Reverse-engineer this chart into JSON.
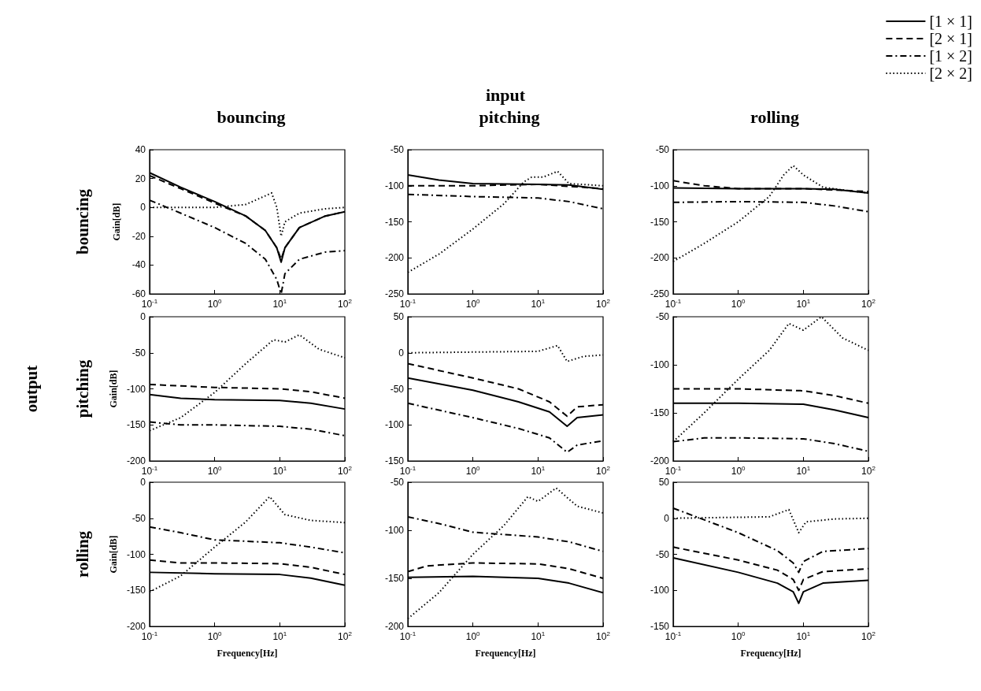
{
  "chart_data": [
    {
      "type": "line",
      "title": "bouncing",
      "ylabel": "Gain[dB]",
      "annotations": [
        "bouncing"
      ],
      "log": "x",
      "xlim": [
        0.1,
        100
      ],
      "xticks": [
        {
          "value": 0.1,
          "label": "10$^{-1}$"
        },
        {
          "value": 1,
          "label": "10$^{0}$"
        },
        {
          "value": 10,
          "label": "10$^{1}$"
        },
        {
          "value": 100,
          "label": "10$^{2}$"
        }
      ],
      "ylim": [
        -60,
        40
      ],
      "yticks": [
        -60,
        -40,
        -20,
        0,
        20,
        40
      ],
      "series": [
        {
          "color": "#000000",
          "line_style": "solid",
          "x": [
            0.1,
            0.3,
            1,
            3,
            6,
            9,
            10.5,
            12,
            20,
            50,
            100
          ],
          "values": [
            24,
            14,
            4,
            -6,
            -16,
            -28,
            -38,
            -28,
            -14,
            -6,
            -3
          ]
        },
        {
          "color": "#000000",
          "line_style": "dashed",
          "x": [
            0.1,
            0.3,
            1,
            3,
            6,
            9,
            10.5,
            12,
            20,
            50,
            100
          ],
          "values": [
            22,
            13,
            3,
            -6,
            -16,
            -28,
            -36,
            -28,
            -14,
            -6,
            -3
          ]
        },
        {
          "color": "#000000",
          "line_style": "dashdot",
          "x": [
            0.1,
            0.3,
            1,
            3,
            6,
            9,
            10.5,
            12,
            20,
            50,
            100
          ],
          "values": [
            5,
            -4,
            -14,
            -25,
            -36,
            -50,
            -60,
            -46,
            -36,
            -31,
            -30
          ]
        },
        {
          "color": "#000000",
          "line_style": "dotted",
          "x": [
            0.1,
            1,
            3,
            6,
            7.5,
            9,
            10.5,
            12,
            20,
            50,
            100
          ],
          "values": [
            0,
            0,
            2,
            8,
            10,
            0,
            -20,
            -10,
            -4,
            -1,
            0
          ]
        }
      ]
    },
    {
      "type": "line",
      "title": "pitching",
      "annotations": [
        "input"
      ],
      "log": "x",
      "xlim": [
        0.1,
        100
      ],
      "xticks": [
        {
          "value": 0.1,
          "label": "10$^{-1}$"
        },
        {
          "value": 1,
          "label": "10$^{0}$"
        },
        {
          "value": 10,
          "label": "10$^{1}$"
        },
        {
          "value": 100,
          "label": "10$^{2}$"
        }
      ],
      "ylim": [
        -250,
        -50
      ],
      "yticks": [
        -250,
        -200,
        -150,
        -100,
        -50
      ],
      "series": [
        {
          "color": "#000000",
          "line_style": "solid",
          "x": [
            0.1,
            0.3,
            1,
            10,
            30,
            100
          ],
          "values": [
            -85,
            -92,
            -97,
            -98,
            -99,
            -105
          ]
        },
        {
          "color": "#000000",
          "line_style": "dashed",
          "x": [
            0.1,
            1,
            10,
            100
          ],
          "values": [
            -100,
            -100,
            -98,
            -104
          ]
        },
        {
          "color": "#000000",
          "line_style": "dashdot",
          "x": [
            0.1,
            1,
            10,
            30,
            100
          ],
          "values": [
            -112,
            -115,
            -117,
            -122,
            -132
          ]
        },
        {
          "color": "#000000",
          "line_style": "dotted",
          "x": [
            0.1,
            0.3,
            1,
            3,
            6,
            8,
            12,
            20,
            30,
            100
          ],
          "values": [
            -220,
            -195,
            -160,
            -125,
            -95,
            -88,
            -88,
            -80,
            -97,
            -100
          ]
        }
      ]
    },
    {
      "type": "line",
      "title": "rolling",
      "legend": "top right",
      "log": "x",
      "xlim": [
        0.1,
        100
      ],
      "xticks": [
        {
          "value": 0.1,
          "label": "10$^{-1}$"
        },
        {
          "value": 1,
          "label": "10$^{0}$"
        },
        {
          "value": 10,
          "label": "10$^{1}$"
        },
        {
          "value": 100,
          "label": "10$^{2}$"
        }
      ],
      "ylim": [
        -250,
        -50
      ],
      "yticks": [
        -250,
        -200,
        -150,
        -100,
        -50
      ],
      "series": [
        {
          "name": "[1 × 1]",
          "color": "#000000",
          "line_style": "solid",
          "x": [
            0.1,
            1,
            10,
            30,
            100
          ],
          "values": [
            -103,
            -104,
            -104,
            -105,
            -110
          ]
        },
        {
          "name": "[2 × 1]",
          "color": "#000000",
          "line_style": "dashed",
          "x": [
            0.1,
            0.3,
            1,
            10,
            100
          ],
          "values": [
            -93,
            -100,
            -104,
            -104,
            -108
          ]
        },
        {
          "name": "[1 × 2]",
          "color": "#000000",
          "line_style": "dashdot",
          "x": [
            0.1,
            1,
            10,
            30,
            100
          ],
          "values": [
            -123,
            -122,
            -123,
            -128,
            -136
          ]
        },
        {
          "name": "[2 × 2]",
          "color": "#000000",
          "line_style": "dotted",
          "x": [
            0.1,
            0.3,
            1,
            3,
            5,
            7,
            10,
            20,
            50,
            100
          ],
          "values": [
            -205,
            -180,
            -150,
            -115,
            -85,
            -72,
            -85,
            -102,
            -107,
            -110
          ]
        }
      ]
    },
    {
      "type": "line",
      "ylabel": "Gain[dB]",
      "annotations": [
        "output",
        "pitching"
      ],
      "log": "x",
      "xlim": [
        0.1,
        100
      ],
      "xticks": [
        {
          "value": 0.1,
          "label": "10$^{-1}$"
        },
        {
          "value": 1,
          "label": "10$^{0}$"
        },
        {
          "value": 10,
          "label": "10$^{1}$"
        },
        {
          "value": 100,
          "label": "10$^{2}$"
        }
      ],
      "ylim": [
        -200,
        0
      ],
      "yticks": [
        -200,
        -150,
        -100,
        -50,
        0
      ],
      "series": [
        {
          "color": "#000000",
          "line_style": "solid",
          "x": [
            0.1,
            0.3,
            1,
            10,
            30,
            100
          ],
          "values": [
            -108,
            -113,
            -115,
            -116,
            -120,
            -128
          ]
        },
        {
          "color": "#000000",
          "line_style": "dashed",
          "x": [
            0.1,
            1,
            10,
            30,
            100
          ],
          "values": [
            -94,
            -98,
            -100,
            -104,
            -113
          ]
        },
        {
          "color": "#000000",
          "line_style": "dashdot",
          "x": [
            0.1,
            0.3,
            1,
            10,
            30,
            100
          ],
          "values": [
            -146,
            -150,
            -150,
            -152,
            -156,
            -165
          ]
        },
        {
          "color": "#000000",
          "line_style": "dotted",
          "x": [
            0.1,
            0.3,
            1,
            3,
            8,
            12,
            20,
            40,
            100
          ],
          "values": [
            -158,
            -140,
            -105,
            -65,
            -32,
            -35,
            -25,
            -45,
            -57
          ]
        }
      ]
    },
    {
      "type": "line",
      "log": "x",
      "xlim": [
        0.1,
        100
      ],
      "xticks": [
        {
          "value": 0.1,
          "label": "10$^{-1}$"
        },
        {
          "value": 1,
          "label": "10$^{0}$"
        },
        {
          "value": 10,
          "label": "10$^{1}$"
        },
        {
          "value": 100,
          "label": "10$^{2}$"
        }
      ],
      "ylim": [
        -150,
        50
      ],
      "yticks": [
        -150,
        -100,
        -50,
        0,
        50
      ],
      "series": [
        {
          "color": "#000000",
          "line_style": "solid",
          "x": [
            0.1,
            1,
            5,
            15,
            28,
            40,
            100
          ],
          "values": [
            -35,
            -52,
            -68,
            -82,
            -102,
            -90,
            -86
          ]
        },
        {
          "color": "#000000",
          "line_style": "dashed",
          "x": [
            0.1,
            1,
            5,
            15,
            28,
            40,
            100
          ],
          "values": [
            -15,
            -35,
            -50,
            -68,
            -88,
            -75,
            -72
          ]
        },
        {
          "color": "#000000",
          "line_style": "dashdot",
          "x": [
            0.1,
            1,
            5,
            15,
            28,
            40,
            100
          ],
          "values": [
            -70,
            -90,
            -105,
            -118,
            -138,
            -128,
            -122
          ]
        },
        {
          "color": "#000000",
          "line_style": "dotted",
          "x": [
            0.1,
            10,
            20,
            28,
            50,
            100
          ],
          "values": [
            0,
            2,
            10,
            -12,
            -5,
            -3
          ]
        }
      ]
    },
    {
      "type": "line",
      "log": "x",
      "xlim": [
        0.1,
        100
      ],
      "xticks": [
        {
          "value": 0.1,
          "label": "10$^{-1}$"
        },
        {
          "value": 1,
          "label": "10$^{0}$"
        },
        {
          "value": 10,
          "label": "10$^{1}$"
        },
        {
          "value": 100,
          "label": "10$^{2}$"
        }
      ],
      "ylim": [
        -200,
        -50
      ],
      "yticks": [
        -200,
        -150,
        -100,
        -50
      ],
      "series": [
        {
          "color": "#000000",
          "line_style": "solid",
          "x": [
            0.1,
            1,
            10,
            30,
            100
          ],
          "values": [
            -140,
            -140,
            -141,
            -147,
            -155
          ]
        },
        {
          "color": "#000000",
          "line_style": "dashed",
          "x": [
            0.1,
            1,
            10,
            30,
            100
          ],
          "values": [
            -125,
            -125,
            -127,
            -132,
            -140
          ]
        },
        {
          "color": "#000000",
          "line_style": "dashdot",
          "x": [
            0.1,
            0.3,
            1,
            10,
            30,
            100
          ],
          "values": [
            -180,
            -176,
            -176,
            -177,
            -182,
            -190
          ]
        },
        {
          "color": "#000000",
          "line_style": "dotted",
          "x": [
            0.1,
            0.3,
            1,
            3,
            6,
            10,
            19,
            40,
            100
          ],
          "values": [
            -180,
            -150,
            -115,
            -85,
            -57,
            -64,
            -50,
            -72,
            -85
          ]
        }
      ]
    },
    {
      "type": "line",
      "ylabel": "Gain[dB]",
      "xlabel": "Frequency[Hz]",
      "annotations": [
        "rolling"
      ],
      "log": "x",
      "xlim": [
        0.1,
        100
      ],
      "xticks": [
        {
          "value": 0.1,
          "label": "10$^{-1}$"
        },
        {
          "value": 1,
          "label": "10$^{0}$"
        },
        {
          "value": 10,
          "label": "10$^{1}$"
        },
        {
          "value": 100,
          "label": "10$^{2}$"
        }
      ],
      "ylim": [
        -200,
        0
      ],
      "yticks": [
        -200,
        -150,
        -100,
        -50,
        0
      ],
      "series": [
        {
          "color": "#000000",
          "line_style": "solid",
          "x": [
            0.1,
            1,
            10,
            30,
            100
          ],
          "values": [
            -125,
            -127,
            -128,
            -133,
            -143
          ]
        },
        {
          "color": "#000000",
          "line_style": "dashed",
          "x": [
            0.1,
            0.3,
            1,
            10,
            30,
            100
          ],
          "values": [
            -108,
            -112,
            -112,
            -113,
            -118,
            -128
          ]
        },
        {
          "color": "#000000",
          "line_style": "dashdot",
          "x": [
            0.1,
            0.3,
            1,
            10,
            30,
            100
          ],
          "values": [
            -62,
            -70,
            -80,
            -84,
            -90,
            -98
          ]
        },
        {
          "color": "#000000",
          "line_style": "dotted",
          "x": [
            0.1,
            0.3,
            1,
            3,
            7,
            12,
            30,
            100
          ],
          "values": [
            -152,
            -130,
            -90,
            -55,
            -20,
            -45,
            -53,
            -56
          ]
        }
      ]
    },
    {
      "type": "line",
      "xlabel": "Frequency[Hz]",
      "log": "x",
      "xlim": [
        0.1,
        100
      ],
      "xticks": [
        {
          "value": 0.1,
          "label": "10$^{-1}$"
        },
        {
          "value": 1,
          "label": "10$^{0}$"
        },
        {
          "value": 10,
          "label": "10$^{1}$"
        },
        {
          "value": 100,
          "label": "10$^{2}$"
        }
      ],
      "ylim": [
        -200,
        -50
      ],
      "yticks": [
        -200,
        -150,
        -100,
        -50
      ],
      "series": [
        {
          "color": "#000000",
          "line_style": "solid",
          "x": [
            0.1,
            1,
            10,
            30,
            100
          ],
          "values": [
            -149,
            -148,
            -150,
            -155,
            -165
          ]
        },
        {
          "color": "#000000",
          "line_style": "dashed",
          "x": [
            0.1,
            0.2,
            1,
            10,
            30,
            100
          ],
          "values": [
            -143,
            -137,
            -134,
            -135,
            -140,
            -150
          ]
        },
        {
          "color": "#000000",
          "line_style": "dashdot",
          "x": [
            0.1,
            0.3,
            1,
            10,
            30,
            100
          ],
          "values": [
            -86,
            -93,
            -102,
            -107,
            -112,
            -122
          ]
        },
        {
          "color": "#000000",
          "line_style": "dotted",
          "x": [
            0.1,
            0.3,
            1,
            3,
            7,
            10,
            19,
            40,
            100
          ],
          "values": [
            -192,
            -165,
            -125,
            -95,
            -65,
            -70,
            -56,
            -75,
            -82
          ]
        }
      ]
    },
    {
      "type": "line",
      "xlabel": "Frequency[Hz]",
      "log": "x",
      "xlim": [
        0.1,
        100
      ],
      "xticks": [
        {
          "value": 0.1,
          "label": "10$^{-1}$"
        },
        {
          "value": 1,
          "label": "10$^{0}$"
        },
        {
          "value": 10,
          "label": "10$^{1}$"
        },
        {
          "value": 100,
          "label": "10$^{2}$"
        }
      ],
      "ylim": [
        -150,
        50
      ],
      "yticks": [
        -150,
        -100,
        -50,
        0,
        50
      ],
      "series": [
        {
          "color": "#000000",
          "line_style": "solid",
          "x": [
            0.1,
            1,
            4,
            7,
            8.5,
            10,
            20,
            100
          ],
          "values": [
            -55,
            -75,
            -90,
            -102,
            -118,
            -102,
            -90,
            -86
          ]
        },
        {
          "color": "#000000",
          "line_style": "dashed",
          "x": [
            0.1,
            1,
            4,
            7,
            8.5,
            10,
            20,
            100
          ],
          "values": [
            -40,
            -58,
            -72,
            -85,
            -100,
            -85,
            -74,
            -70
          ]
        },
        {
          "color": "#000000",
          "line_style": "dashdot",
          "x": [
            0.1,
            1,
            4,
            7,
            8.5,
            10,
            20,
            100
          ],
          "values": [
            14,
            -20,
            -45,
            -62,
            -75,
            -60,
            -46,
            -42
          ]
        },
        {
          "color": "#000000",
          "line_style": "dotted",
          "x": [
            0.1,
            3,
            6,
            8.5,
            11,
            30,
            100
          ],
          "values": [
            0,
            2,
            12,
            -20,
            -5,
            -1,
            0
          ]
        }
      ]
    }
  ]
}
